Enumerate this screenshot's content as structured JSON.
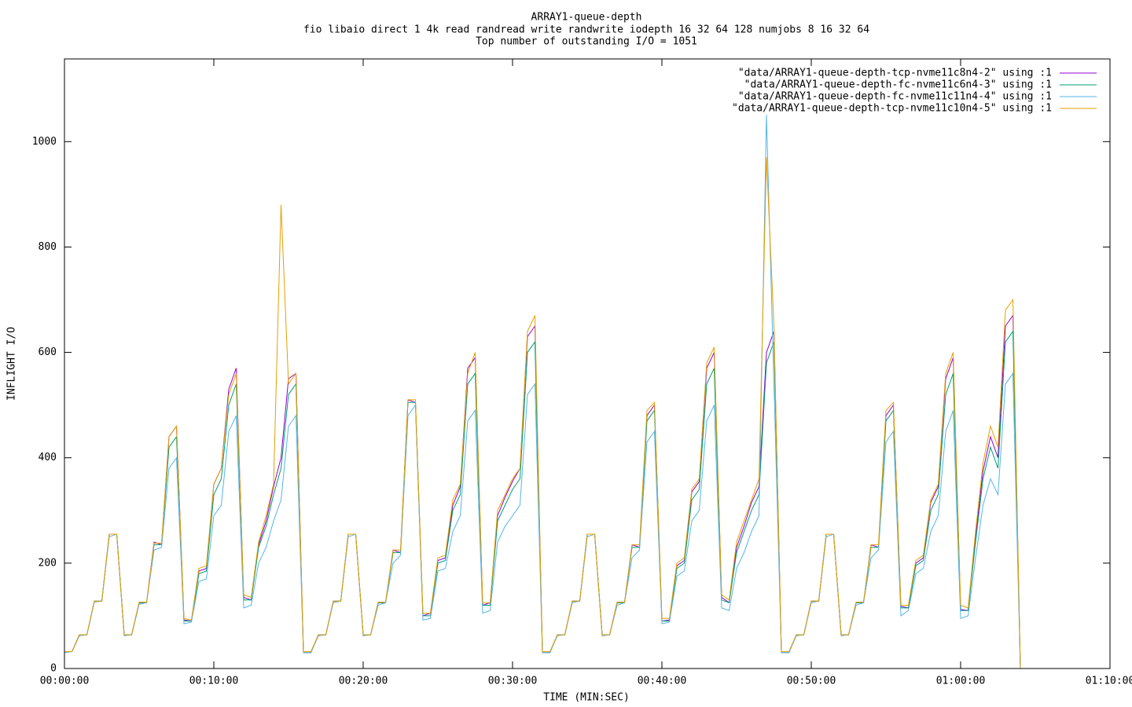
{
  "chart_data": {
    "type": "line",
    "title": "ARRAY1-queue-depth",
    "subtitle": [
      "fio libaio direct 1 4k read randread write randwrite iodepth 16 32 64 128 numjobs 8 16 32 64",
      "Top number of outstanding I/O = 1051"
    ],
    "xlabel": "TIME (MIN:SEC)",
    "ylabel": "INFLIGHT I/O",
    "x": [
      0,
      30,
      60,
      90,
      120,
      150,
      180,
      210,
      240,
      270,
      300,
      330,
      360,
      390,
      420,
      450,
      480,
      510,
      540,
      570,
      600,
      630,
      660,
      690,
      720,
      750,
      780,
      810,
      840,
      870,
      900,
      930,
      960,
      990,
      1020,
      1050,
      1080,
      1110,
      1140,
      1170,
      1200,
      1230,
      1260,
      1290,
      1320,
      1350,
      1380,
      1410,
      1440,
      1470,
      1500,
      1530,
      1560,
      1590,
      1620,
      1650,
      1680,
      1710,
      1740,
      1770,
      1800,
      1830,
      1860,
      1890,
      1920,
      1950,
      1980,
      2010,
      2040,
      2070,
      2100,
      2130,
      2160,
      2190,
      2220,
      2250,
      2280,
      2310,
      2340,
      2370,
      2400,
      2430,
      2460,
      2490,
      2520,
      2550,
      2580,
      2610,
      2640,
      2670,
      2700,
      2730,
      2760,
      2790,
      2820,
      2850,
      2880,
      2910,
      2940,
      2970,
      3000,
      3030,
      3060,
      3090,
      3120,
      3150,
      3180,
      3210,
      3240,
      3270,
      3300,
      3330,
      3360,
      3390,
      3420,
      3450,
      3480,
      3510,
      3540,
      3570,
      3600,
      3630,
      3660,
      3690,
      3720,
      3750,
      3780,
      3810,
      3840
    ],
    "series": [
      {
        "name": "\"data/ARRAY1-queue-depth-tcp-nvme11c8n4-2\" using :1",
        "color": "#9400d3",
        "values": [
          32,
          32,
          64,
          64,
          128,
          128,
          255,
          255,
          64,
          64,
          125,
          125,
          240,
          235,
          440,
          460,
          92,
          90,
          185,
          190,
          350,
          380,
          530,
          570,
          135,
          130,
          235,
          280,
          345,
          400,
          550,
          560,
          30,
          30,
          64,
          64,
          128,
          128,
          255,
          255,
          64,
          64,
          125,
          125,
          225,
          220,
          510,
          505,
          100,
          105,
          205,
          210,
          310,
          345,
          570,
          590,
          120,
          125,
          290,
          325,
          355,
          380,
          630,
          650,
          30,
          30,
          64,
          64,
          128,
          128,
          255,
          255,
          64,
          64,
          125,
          125,
          235,
          230,
          480,
          500,
          90,
          92,
          195,
          205,
          335,
          355,
          570,
          600,
          135,
          125,
          230,
          270,
          315,
          345,
          600,
          640,
          30,
          30,
          64,
          64,
          128,
          128,
          255,
          255,
          64,
          64,
          125,
          125,
          235,
          230,
          480,
          500,
          118,
          115,
          200,
          210,
          315,
          345,
          550,
          590,
          112,
          110,
          250,
          375,
          440,
          400,
          650,
          670,
          0
        ]
      },
      {
        "name": "\"data/ARRAY1-queue-depth-fc-nvme11c6n4-3\" using :1",
        "color": "#009e73",
        "values": [
          32,
          32,
          64,
          64,
          128,
          128,
          255,
          255,
          64,
          64,
          125,
          125,
          235,
          235,
          420,
          440,
          90,
          90,
          180,
          185,
          330,
          360,
          500,
          540,
          130,
          130,
          230,
          270,
          330,
          380,
          520,
          540,
          30,
          30,
          64,
          64,
          128,
          128,
          255,
          255,
          64,
          64,
          125,
          125,
          220,
          220,
          505,
          505,
          100,
          100,
          200,
          205,
          300,
          330,
          540,
          560,
          120,
          120,
          280,
          310,
          340,
          360,
          600,
          620,
          30,
          30,
          64,
          64,
          128,
          128,
          255,
          255,
          64,
          64,
          125,
          125,
          230,
          230,
          470,
          490,
          90,
          90,
          190,
          200,
          320,
          340,
          540,
          570,
          130,
          125,
          220,
          260,
          300,
          330,
          580,
          620,
          30,
          30,
          64,
          64,
          128,
          128,
          255,
          255,
          64,
          64,
          125,
          125,
          230,
          230,
          470,
          490,
          115,
          115,
          195,
          205,
          300,
          330,
          520,
          560,
          110,
          110,
          240,
          360,
          420,
          380,
          620,
          640,
          0
        ]
      },
      {
        "name": "\"data/ARRAY1-queue-depth-fc-nvme11c11n4-4\" using :1",
        "color": "#56b4e9",
        "values": [
          30,
          32,
          62,
          64,
          126,
          128,
          250,
          255,
          62,
          64,
          122,
          125,
          225,
          230,
          380,
          400,
          85,
          88,
          165,
          170,
          290,
          310,
          450,
          480,
          115,
          120,
          200,
          230,
          280,
          320,
          460,
          480,
          30,
          30,
          62,
          64,
          125,
          128,
          250,
          255,
          62,
          64,
          120,
          125,
          200,
          215,
          480,
          500,
          92,
          95,
          185,
          190,
          260,
          290,
          470,
          490,
          105,
          110,
          240,
          270,
          290,
          310,
          520,
          540,
          30,
          30,
          62,
          64,
          125,
          128,
          250,
          255,
          62,
          64,
          120,
          125,
          210,
          225,
          430,
          450,
          85,
          88,
          175,
          185,
          280,
          300,
          470,
          500,
          115,
          110,
          190,
          220,
          260,
          290,
          1051,
          540,
          30,
          30,
          62,
          64,
          125,
          128,
          250,
          255,
          62,
          64,
          120,
          125,
          210,
          225,
          430,
          450,
          100,
          110,
          180,
          190,
          260,
          290,
          450,
          490,
          95,
          100,
          210,
          310,
          360,
          330,
          540,
          560,
          0
        ]
      },
      {
        "name": "\"data/ARRAY1-queue-depth-tcp-nvme11c10n4-5\" using :1",
        "color": "#e69f00",
        "values": [
          32,
          32,
          64,
          64,
          128,
          128,
          255,
          255,
          64,
          64,
          126,
          126,
          238,
          238,
          440,
          460,
          95,
          92,
          190,
          195,
          350,
          380,
          520,
          560,
          140,
          135,
          240,
          290,
          350,
          880,
          540,
          560,
          32,
          32,
          64,
          64,
          128,
          128,
          255,
          255,
          64,
          64,
          126,
          126,
          225,
          225,
          510,
          510,
          105,
          105,
          210,
          215,
          320,
          350,
          560,
          600,
          125,
          125,
          300,
          330,
          360,
          380,
          640,
          670,
          32,
          32,
          64,
          64,
          128,
          128,
          255,
          255,
          64,
          64,
          126,
          126,
          235,
          235,
          490,
          505,
          95,
          95,
          200,
          210,
          340,
          360,
          580,
          610,
          140,
          130,
          240,
          280,
          320,
          360,
          970,
          650,
          32,
          32,
          64,
          64,
          128,
          128,
          255,
          255,
          64,
          64,
          126,
          126,
          235,
          235,
          490,
          505,
          120,
          120,
          205,
          215,
          320,
          350,
          560,
          600,
          120,
          115,
          260,
          390,
          460,
          420,
          680,
          700,
          0
        ]
      }
    ],
    "xlim": [
      0,
      4200
    ],
    "xticks": [
      {
        "value": 0,
        "label": "00:00:00"
      },
      {
        "value": 600,
        "label": "00:10:00"
      },
      {
        "value": 1200,
        "label": "00:20:00"
      },
      {
        "value": 1800,
        "label": "00:30:00"
      },
      {
        "value": 2400,
        "label": "00:40:00"
      },
      {
        "value": 3000,
        "label": "00:50:00"
      },
      {
        "value": 3600,
        "label": "01:00:00"
      },
      {
        "value": 4200,
        "label": "01:10:00"
      }
    ],
    "ylim": [
      0,
      1157
    ],
    "yticks": [
      0,
      200,
      400,
      600,
      800,
      1000
    ],
    "grid": false,
    "legend": "top-right"
  }
}
